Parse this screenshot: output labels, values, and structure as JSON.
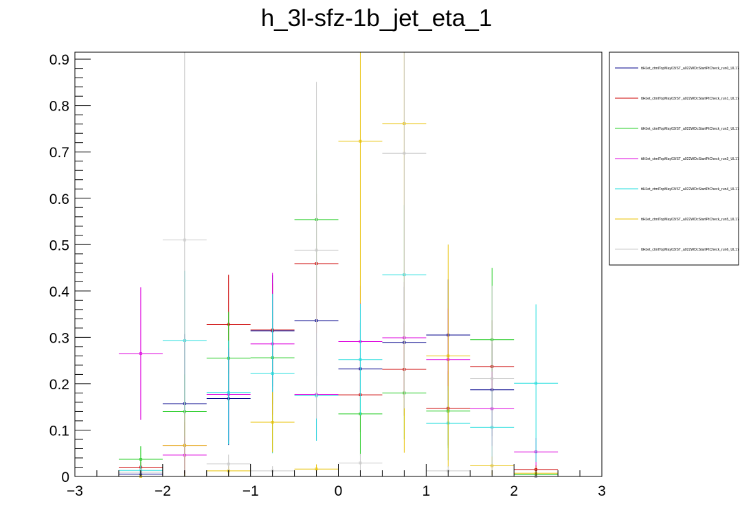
{
  "chart_data": {
    "type": "scatter",
    "title": "h_3l-sfz-1b_jet_eta_1",
    "xlabel": "",
    "ylabel": "",
    "xlim": [
      -3,
      3
    ],
    "ylim": [
      0,
      0.915
    ],
    "x_ticks": [
      "−3",
      "−2",
      "−1",
      "0",
      "1",
      "2",
      "3"
    ],
    "y_ticks": [
      "0",
      "0.1",
      "0.2",
      "0.3",
      "0.4",
      "0.5",
      "0.6",
      "0.7",
      "0.8",
      "0.9"
    ],
    "bin_edges": [
      -2.5,
      -2.0,
      -1.5,
      -1.0,
      -0.5,
      0.0,
      0.5,
      1.0,
      1.5,
      2.0,
      2.5
    ],
    "bin_centers": [
      -2.25,
      -1.75,
      -1.25,
      -0.75,
      -0.25,
      0.25,
      0.75,
      1.25,
      1.75,
      2.25
    ],
    "legend_position": "top-right",
    "series": [
      {
        "name": "ttHJet_ctmlTopMay03/ST_a022WDcStartPtCheck_run0_UL17",
        "color": "#00008b",
        "values": [
          0.005,
          0.157,
          0.168,
          0.314,
          0.336,
          0.232,
          0.289,
          0.305,
          0.187,
          0.0
        ],
        "errors": [
          0.006,
          0.15,
          0.1,
          0.12,
          0.12,
          0.1,
          0.12,
          0.12,
          0.1,
          0.0
        ]
      },
      {
        "name": "ttHJet_ctmlTopMay03/ST_a022WDcStartPtCheck_run1_UL17",
        "color": "#cc0000",
        "values": [
          0.02,
          0.067,
          0.328,
          0.316,
          0.459,
          0.176,
          0.231,
          0.147,
          0.237,
          0.015
        ],
        "errors": [
          0.012,
          0.05,
          0.107,
          0.1,
          0.15,
          0.08,
          0.1,
          0.08,
          0.1,
          0.01
        ]
      },
      {
        "name": "ttHJet_ctmlTopMay03/ST_a022WDcStartPtCheck_run2_UL17",
        "color": "#22cc22",
        "values": [
          0.037,
          0.14,
          0.255,
          0.256,
          0.554,
          0.135,
          0.18,
          0.141,
          0.295,
          0.004
        ],
        "errors": [
          0.028,
          0.08,
          0.1,
          0.1,
          0.15,
          0.09,
          0.1,
          0.08,
          0.155,
          0.004
        ]
      },
      {
        "name": "ttHJet_ctmlTopMay03/ST_a022WDcStartPtCheck_run3_UL17",
        "color": "#dd00dd",
        "values": [
          0.265,
          0.046,
          0.177,
          0.286,
          0.177,
          0.291,
          0.299,
          0.252,
          0.146,
          0.053
        ],
        "errors": [
          0.143,
          0.04,
          0.1,
          0.153,
          0.1,
          0.12,
          0.12,
          0.11,
          0.08,
          0.03
        ]
      },
      {
        "name": "ttHJet_ctmlTopMay03/ST_a022WDcStartPtCheck_run4_UL17",
        "color": "#22dddd",
        "values": [
          0.013,
          0.293,
          0.181,
          0.222,
          0.174,
          0.252,
          0.435,
          0.115,
          0.106,
          0.201
        ],
        "errors": [
          0.01,
          0.15,
          0.112,
          0.172,
          0.097,
          0.12,
          0.15,
          0.08,
          0.08,
          0.17
        ]
      },
      {
        "name": "ttHJet_ctmlTopMay03/ST_a022WDcStartPtCheck_run5_UL17",
        "color": "#e8c000",
        "values": [
          0.0,
          0.067,
          0.012,
          0.117,
          0.016,
          0.723,
          0.761,
          0.26,
          0.023,
          0.007
        ],
        "errors": [
          0.0,
          0.067,
          0.01,
          0.065,
          0.01,
          0.35,
          0.71,
          0.24,
          0.02,
          0.007
        ]
      },
      {
        "name": "ttHJet_ctmlTopMay03/ST_a022WDcStartPtCheck_run6_UL17",
        "color": "#c8c8c8",
        "values": [
          0.009,
          0.51,
          0.027,
          0.012,
          0.488,
          0.029,
          0.697,
          0.012,
          0.211,
          0.0
        ],
        "errors": [
          0.008,
          0.5,
          0.02,
          0.01,
          0.363,
          0.02,
          0.55,
          0.01,
          0.2,
          0.0
        ]
      }
    ]
  }
}
